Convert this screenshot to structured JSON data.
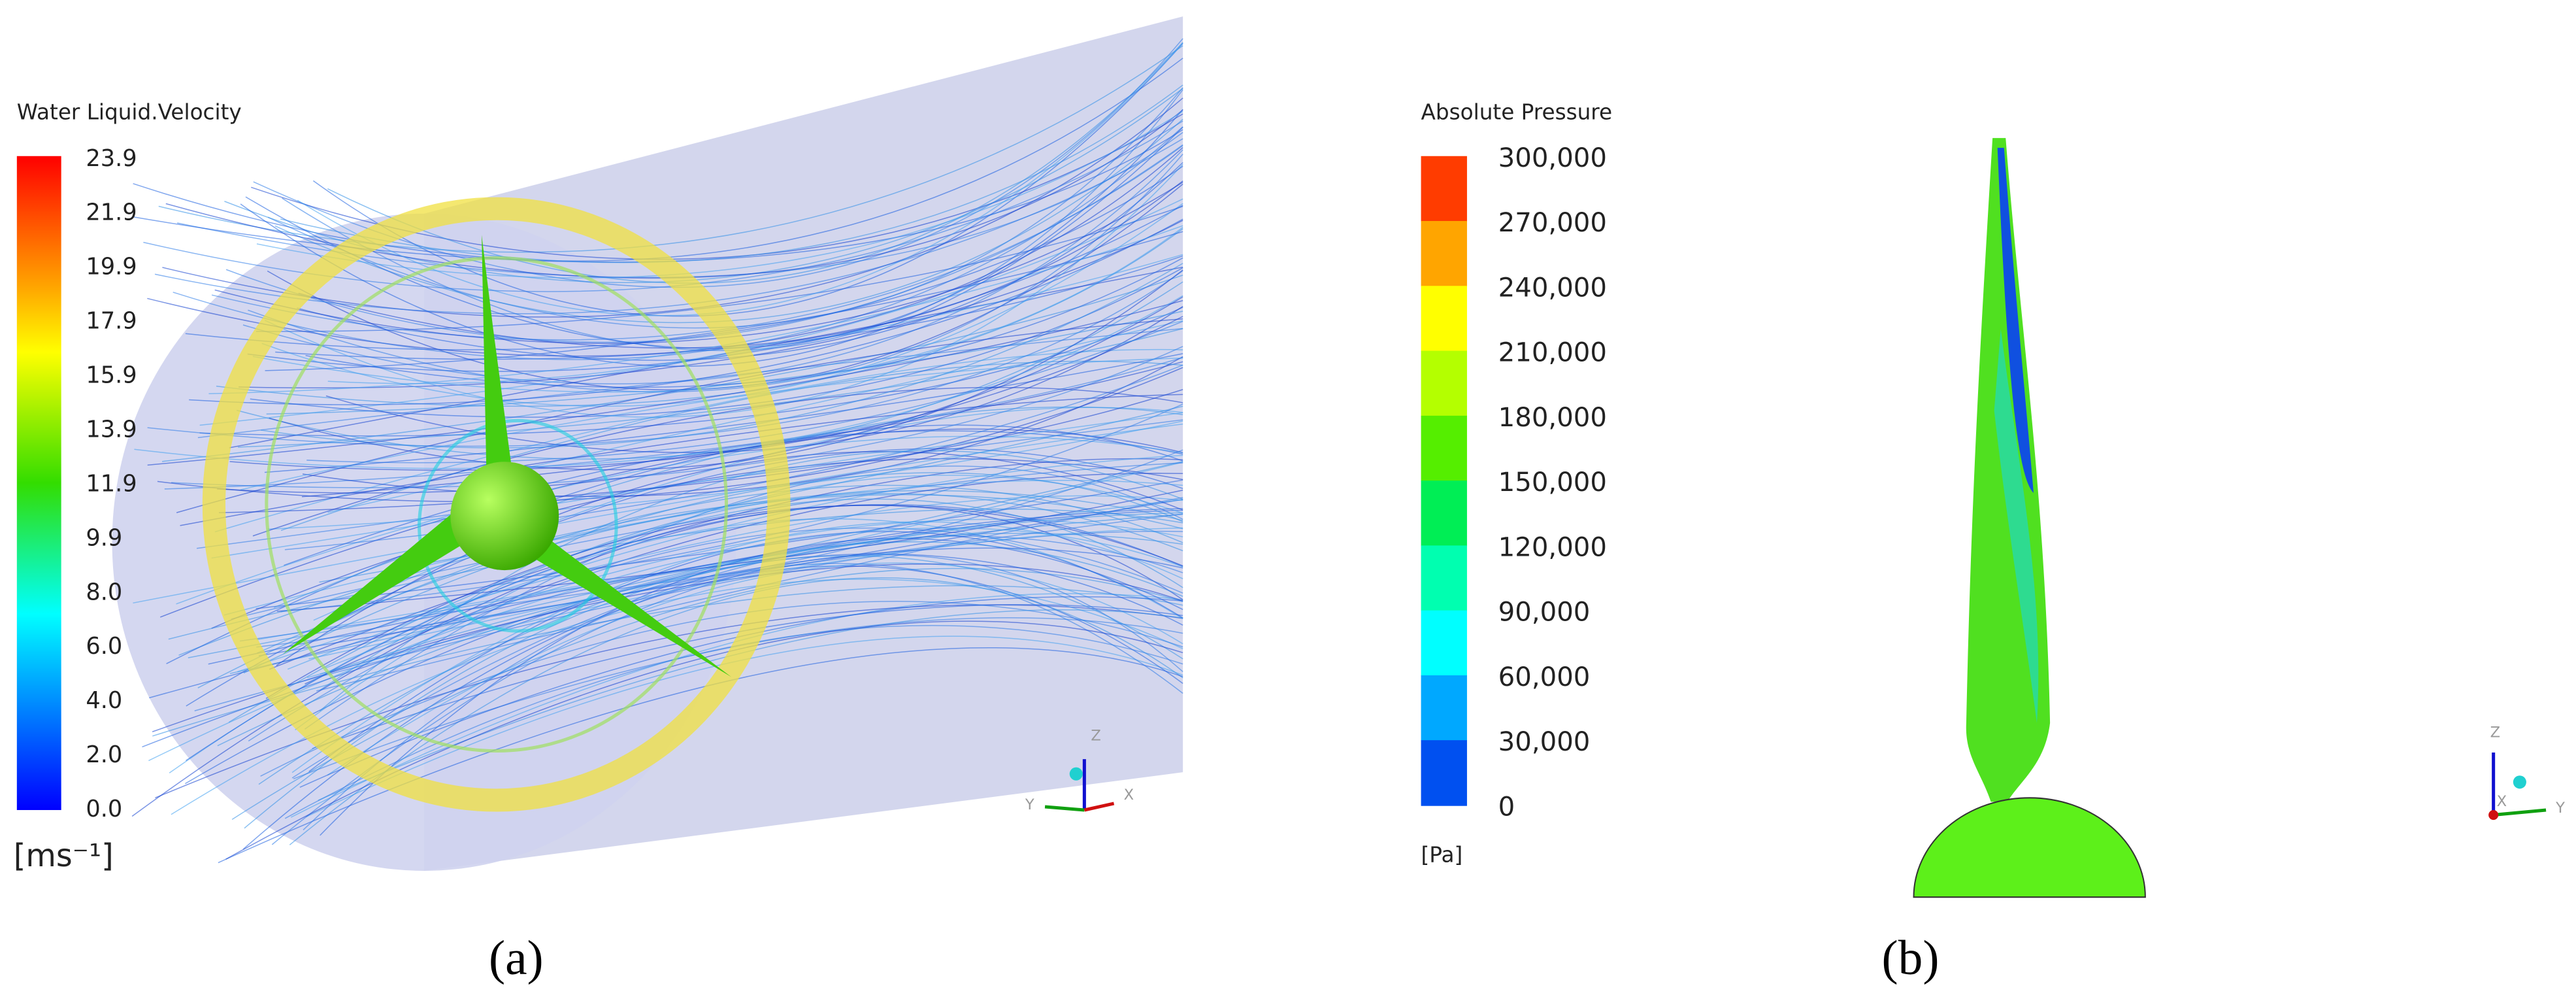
{
  "panel_a": {
    "legend_title": "Water Liquid.Velocity",
    "ticks": [
      "23.9",
      "21.9",
      "19.9",
      "17.9",
      "15.9",
      "13.9",
      "11.9",
      "9.9",
      "8.0",
      "6.0",
      "4.0",
      "2.0",
      "0.0"
    ],
    "unit": "[ms⁻¹]",
    "caption": "(a)",
    "triad": {
      "z": "Z",
      "y": "Y",
      "x": "X"
    }
  },
  "panel_b": {
    "legend_title": "Absolute Pressure",
    "ticks": [
      "300,000",
      "270,000",
      "240,000",
      "210,000",
      "180,000",
      "150,000",
      "120,000",
      "90,000",
      "60,000",
      "30,000",
      "0"
    ],
    "unit": "[Pa]",
    "caption": "(b)",
    "triad": {
      "z": "Z",
      "y": "Y",
      "x": "X"
    }
  }
}
